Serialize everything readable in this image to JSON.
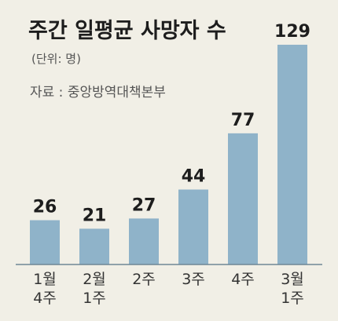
{
  "chart_data": {
    "type": "bar",
    "title": "주간 일평균 사망자 수",
    "unit_label": "(단위: 명)",
    "source": "자료 : 중앙방역대책본부",
    "categories": [
      [
        "1월",
        "4주"
      ],
      [
        "2월",
        "1주"
      ],
      [
        "2주"
      ],
      [
        "3주"
      ],
      [
        "4주"
      ],
      [
        "3월",
        "1주"
      ]
    ],
    "values": [
      26,
      21,
      27,
      44,
      77,
      129
    ],
    "ylim": [
      0,
      129
    ],
    "grid": false,
    "colors": {
      "bar": "#8fb3c9",
      "baseline": "#6f8796",
      "background": "#f1efe6"
    }
  }
}
